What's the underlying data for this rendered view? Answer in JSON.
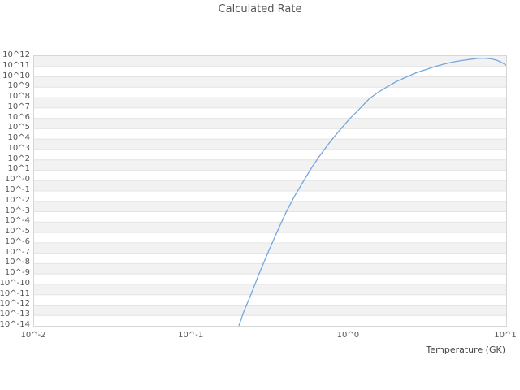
{
  "title": "Calculated Rate",
  "colors": {
    "line": "#74a7dc",
    "band": "#f2f2f2",
    "gridline": "#e4e4e4",
    "border": "#d6d6d6",
    "text": "#555555"
  },
  "chart_data": {
    "type": "line",
    "title": "Calculated Rate",
    "xlabel": "Temperature (GK)",
    "ylabel": "",
    "x_scale": "log",
    "y_scale": "log",
    "xlim_log10": [
      -2,
      1
    ],
    "ylim_log10": [
      -14,
      12
    ],
    "grid": true,
    "banded_background": true,
    "legend": "none",
    "x_tick_labels": [
      "10^-2",
      "10^-1",
      "10^0",
      "10^1"
    ],
    "x_tick_log10": [
      -2,
      -1,
      0,
      1
    ],
    "y_tick_labels": [
      "10^12",
      "10^11",
      "10^10",
      "10^9",
      "10^8",
      "10^7",
      "10^6",
      "10^5",
      "10^4",
      "10^3",
      "10^2",
      "10^1",
      "10^-0",
      "10^-1",
      "10^-2",
      "10^-3",
      "10^-4",
      "10^-5",
      "10^-6",
      "10^-7",
      "10^-8",
      "10^-9",
      "10^-10",
      "10^-11",
      "10^-12",
      "10^-13",
      "10^-14"
    ],
    "y_tick_log10": [
      12,
      11,
      10,
      9,
      8,
      7,
      6,
      5,
      4,
      3,
      2,
      1,
      0,
      -1,
      -2,
      -3,
      -4,
      -5,
      -6,
      -7,
      -8,
      -9,
      -10,
      -11,
      -12,
      -13,
      -14
    ],
    "series": [
      {
        "name": "Calculated Rate",
        "x_gk": [
          0.2,
          0.214,
          0.24,
          0.272,
          0.309,
          0.351,
          0.398,
          0.452,
          0.513,
          0.589,
          0.676,
          0.776,
          0.891,
          1.02,
          1.17,
          1.35,
          1.55,
          1.78,
          2.04,
          2.34,
          2.69,
          3.09,
          3.55,
          4.07,
          4.68,
          5.37,
          6.03,
          6.61,
          7.24,
          7.94,
          8.71,
          9.33,
          10.0
        ],
        "y_log10_rate": [
          -14.0,
          -12.7,
          -10.9,
          -8.8,
          -6.8,
          -4.9,
          -3.1,
          -1.5,
          -0.1,
          1.4,
          2.7,
          3.9,
          5.0,
          6.0,
          6.9,
          7.9,
          8.55,
          9.1,
          9.6,
          10.0,
          10.4,
          10.7,
          11.0,
          11.25,
          11.45,
          11.6,
          11.7,
          11.78,
          11.8,
          11.74,
          11.6,
          11.4,
          11.12
        ]
      }
    ]
  }
}
